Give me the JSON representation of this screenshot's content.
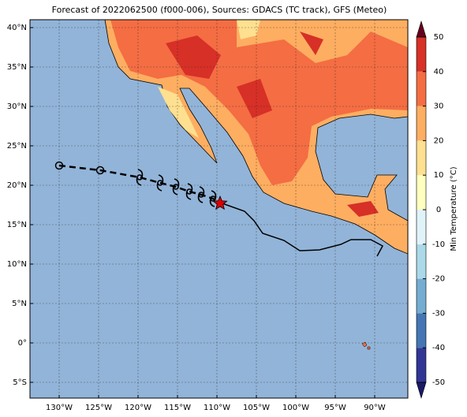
{
  "map": {
    "title": "Forecast of 2022062500 (f000-006), Sources: GDACS (TC track), GFS (Meteo)",
    "x_labels": [
      "130°W",
      "125°W",
      "120°W",
      "115°W",
      "110°W",
      "105°W",
      "100°W",
      "95°W",
      "90°W"
    ],
    "y_labels": [
      "40°N",
      "35°N",
      "30°N",
      "25°N",
      "20°N",
      "15°N",
      "10°N",
      "5°N",
      "0°",
      "5°S"
    ],
    "colorbar": {
      "label": "Min Temperature (°C)",
      "ticks": [
        50,
        40,
        30,
        20,
        10,
        0,
        -10,
        -20,
        -30,
        -40,
        -50
      ]
    }
  }
}
